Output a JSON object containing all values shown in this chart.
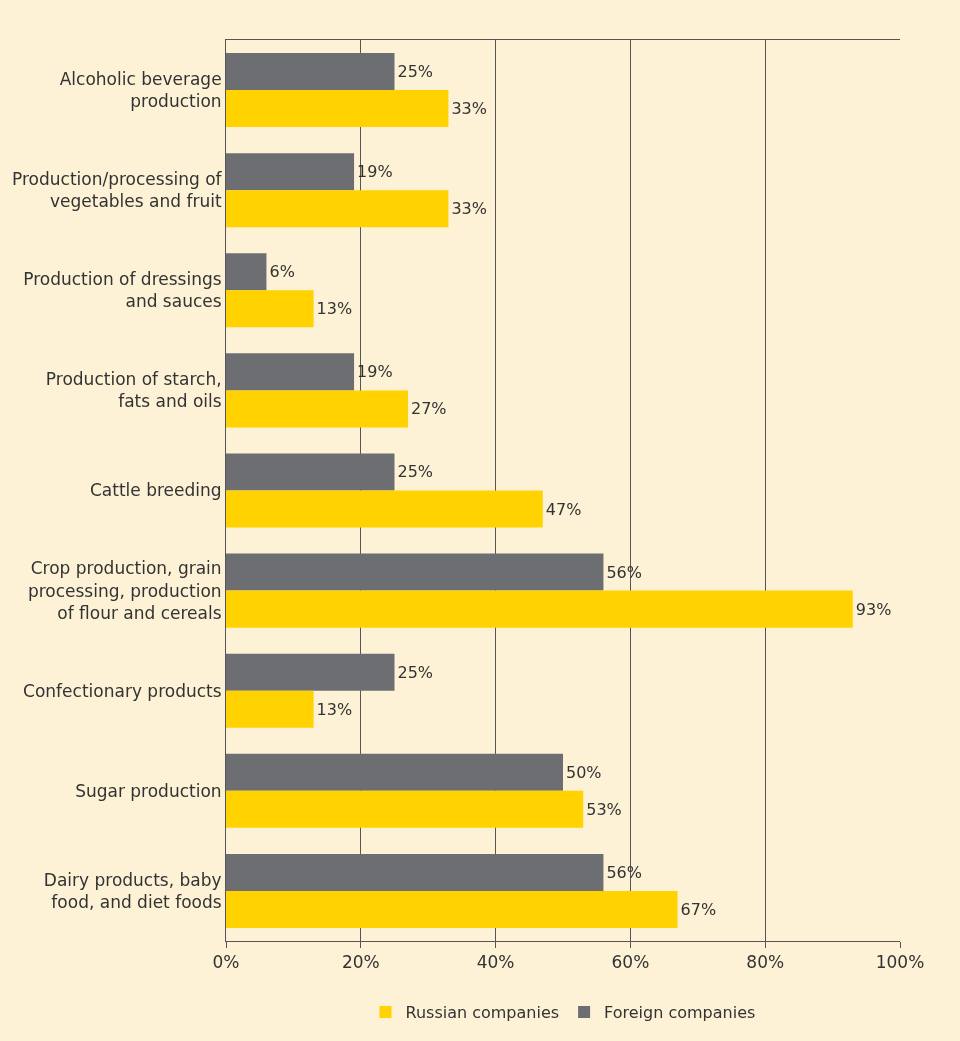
{
  "chart_data": {
    "type": "bar",
    "orientation": "horizontal",
    "categories": [
      "Alcoholic beverage production",
      "Production/processing of vegetables and fruit",
      "Production of dressings and sauces",
      "Production of starch, fats and oils",
      "Cattle breeding",
      "Crop production, grain processing, production of flour and cereals",
      "Confectionary products",
      "Sugar production",
      "Dairy products, baby food, and diet foods"
    ],
    "series": [
      {
        "name": "Foreign companies",
        "color": "#6d6e71",
        "values": [
          25,
          19,
          6,
          19,
          25,
          56,
          25,
          50,
          56
        ],
        "value_labels": [
          "25%",
          "19%",
          "6%",
          "19%",
          "25%",
          "56%",
          "25%",
          "50%",
          "56%"
        ]
      },
      {
        "name": "Russian companies",
        "color": "#ffd200",
        "values": [
          33,
          33,
          13,
          27,
          47,
          93,
          13,
          53,
          67
        ],
        "value_labels": [
          "33%",
          "33%",
          "13%",
          "27%",
          "47%",
          "93%",
          "13%",
          "53%",
          "67%"
        ]
      }
    ],
    "xlim": [
      0,
      100
    ],
    "xticks": [
      {
        "value": 0,
        "label": "0%"
      },
      {
        "value": 20,
        "label": "20%"
      },
      {
        "value": 40,
        "label": "40%"
      },
      {
        "value": 60,
        "label": "60%"
      },
      {
        "value": 80,
        "label": "80%"
      },
      {
        "value": 100,
        "label": "100%"
      }
    ],
    "grid": "x",
    "legend": "bottom"
  }
}
